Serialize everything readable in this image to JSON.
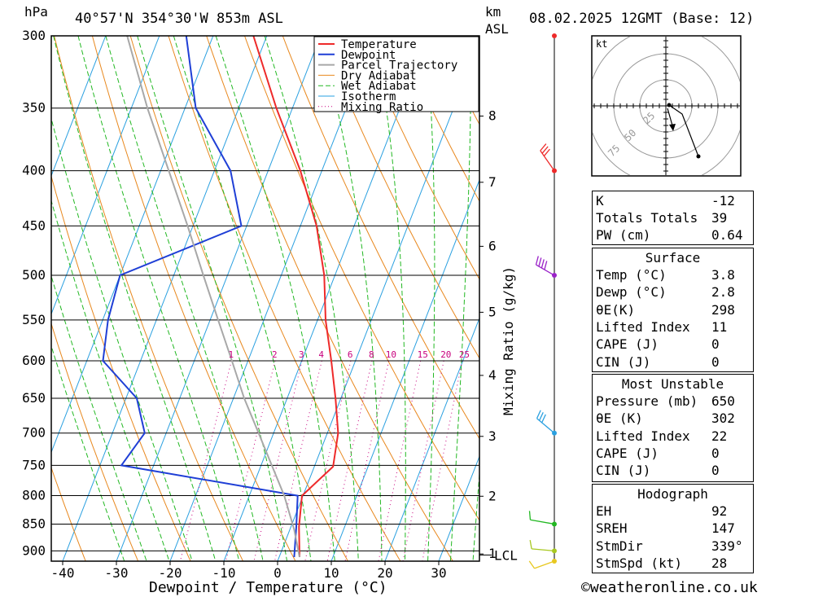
{
  "header": {
    "pressure_unit": "hPa",
    "location": "40°57'N 354°30'W 853m ASL",
    "km_label": "km",
    "asl_label": "ASL",
    "datetime": "08.02.2025 12GMT (Base: 12)"
  },
  "chart_data": {
    "type": "line",
    "title": "40°57'N 354°30'W 853m ASL",
    "xlabel": "Dewpoint / Temperature (°C)",
    "ylabel": "hPa",
    "secondary_ylabel": "Mixing Ratio (g/kg)",
    "xlim": [
      -42,
      38
    ],
    "ylim": [
      920,
      300
    ],
    "x_ticks": [
      "-40",
      "-30",
      "-20",
      "-10",
      "0",
      "10",
      "20",
      "30"
    ],
    "pressure_ticks": [
      "300",
      "350",
      "400",
      "450",
      "500",
      "550",
      "600",
      "650",
      "700",
      "750",
      "800",
      "850",
      "900"
    ],
    "height_ticks_km": [
      "8",
      "7",
      "6",
      "5",
      "4",
      "3",
      "2",
      "1"
    ],
    "lcl_label": "LCL",
    "mixing_ratio_labels": [
      "1",
      "2",
      "3",
      "4",
      "6",
      "8",
      "10",
      "15",
      "20",
      "25"
    ],
    "legend": [
      "Temperature",
      "Dewpoint",
      "Parcel Trajectory",
      "Dry Adiabat",
      "Wet Adiabat",
      "Isotherm",
      "Mixing Ratio"
    ],
    "legend_placement": "top-right",
    "colors": {
      "temperature": "#ee2a2a",
      "dewpoint": "#1f3fd6",
      "parcel": "#a8a8a8",
      "dry_adiabat": "#e8881e",
      "wet_adiabat": "#22b822",
      "isotherm": "#2aa0e0",
      "mixing_ratio": "#c8007d"
    },
    "series": [
      {
        "name": "Temperature",
        "points": [
          [
            3.8,
            912
          ],
          [
            1.5,
            855
          ],
          [
            -0.2,
            800
          ],
          [
            3.5,
            752
          ],
          [
            2.0,
            700
          ],
          [
            -1.0,
            650
          ],
          [
            -4.5,
            600
          ],
          [
            -8.5,
            550
          ],
          [
            -12.0,
            500
          ],
          [
            -17.0,
            450
          ],
          [
            -24.0,
            400
          ],
          [
            -33.0,
            350
          ],
          [
            -42.5,
            300
          ]
        ]
      },
      {
        "name": "Dewpoint",
        "points": [
          [
            2.8,
            912
          ],
          [
            1.0,
            855
          ],
          [
            -1.0,
            800
          ],
          [
            -36.0,
            750
          ],
          [
            -34.0,
            700
          ],
          [
            -38.0,
            650
          ],
          [
            -47.0,
            600
          ],
          [
            -49.0,
            550
          ],
          [
            -50.0,
            500
          ],
          [
            -31.0,
            450
          ],
          [
            -37.0,
            400
          ],
          [
            -48.0,
            350
          ],
          [
            -55.0,
            300
          ]
        ]
      },
      {
        "name": "Parcel Trajectory",
        "points": [
          [
            3.8,
            912
          ],
          [
            0.8,
            860
          ],
          [
            -3.5,
            800
          ],
          [
            -8.0,
            750
          ],
          [
            -12.8,
            700
          ],
          [
            -18.0,
            650
          ],
          [
            -23.0,
            600
          ],
          [
            -28.5,
            550
          ],
          [
            -34.5,
            500
          ],
          [
            -41.0,
            450
          ],
          [
            -48.5,
            400
          ],
          [
            -57.0,
            350
          ],
          [
            -66.0,
            300
          ]
        ]
      }
    ]
  },
  "wind_barbs": {
    "colors": [
      "#ee2a2a",
      "#ee2a2a",
      "#9a22c8",
      "#2aa0e0",
      "#22b822",
      "#a8c820",
      "#e8c820"
    ]
  },
  "hodograph": {
    "unit_label": "kt",
    "ring_labels": [
      "25",
      "50",
      "75"
    ]
  },
  "indices": {
    "k_label": "K",
    "k_value": "-12",
    "tt_label": "Totals Totals",
    "tt_value": "39",
    "pw_label": "PW (cm)",
    "pw_value": "0.64"
  },
  "surface": {
    "title": "Surface",
    "rows": [
      {
        "label": "Temp (°C)",
        "value": "3.8"
      },
      {
        "label": "Dewp (°C)",
        "value": "2.8"
      },
      {
        "label": "θE(K)",
        "value": "298"
      },
      {
        "label": "Lifted Index",
        "value": "11"
      },
      {
        "label": "CAPE (J)",
        "value": "0"
      },
      {
        "label": "CIN (J)",
        "value": "0"
      }
    ]
  },
  "most_unstable": {
    "title": "Most Unstable",
    "rows": [
      {
        "label": "Pressure (mb)",
        "value": "650"
      },
      {
        "label": "θE (K)",
        "value": "302"
      },
      {
        "label": "Lifted Index",
        "value": "22"
      },
      {
        "label": "CAPE (J)",
        "value": "0"
      },
      {
        "label": "CIN (J)",
        "value": "0"
      }
    ]
  },
  "hodograph_box": {
    "title": "Hodograph",
    "rows": [
      {
        "label": "EH",
        "value": "92"
      },
      {
        "label": "SREH",
        "value": "147"
      },
      {
        "label": "StmDir",
        "value": "339°"
      },
      {
        "label": "StmSpd (kt)",
        "value": "28"
      }
    ]
  },
  "footer": {
    "copyright": "©weatheronline.co.uk"
  }
}
